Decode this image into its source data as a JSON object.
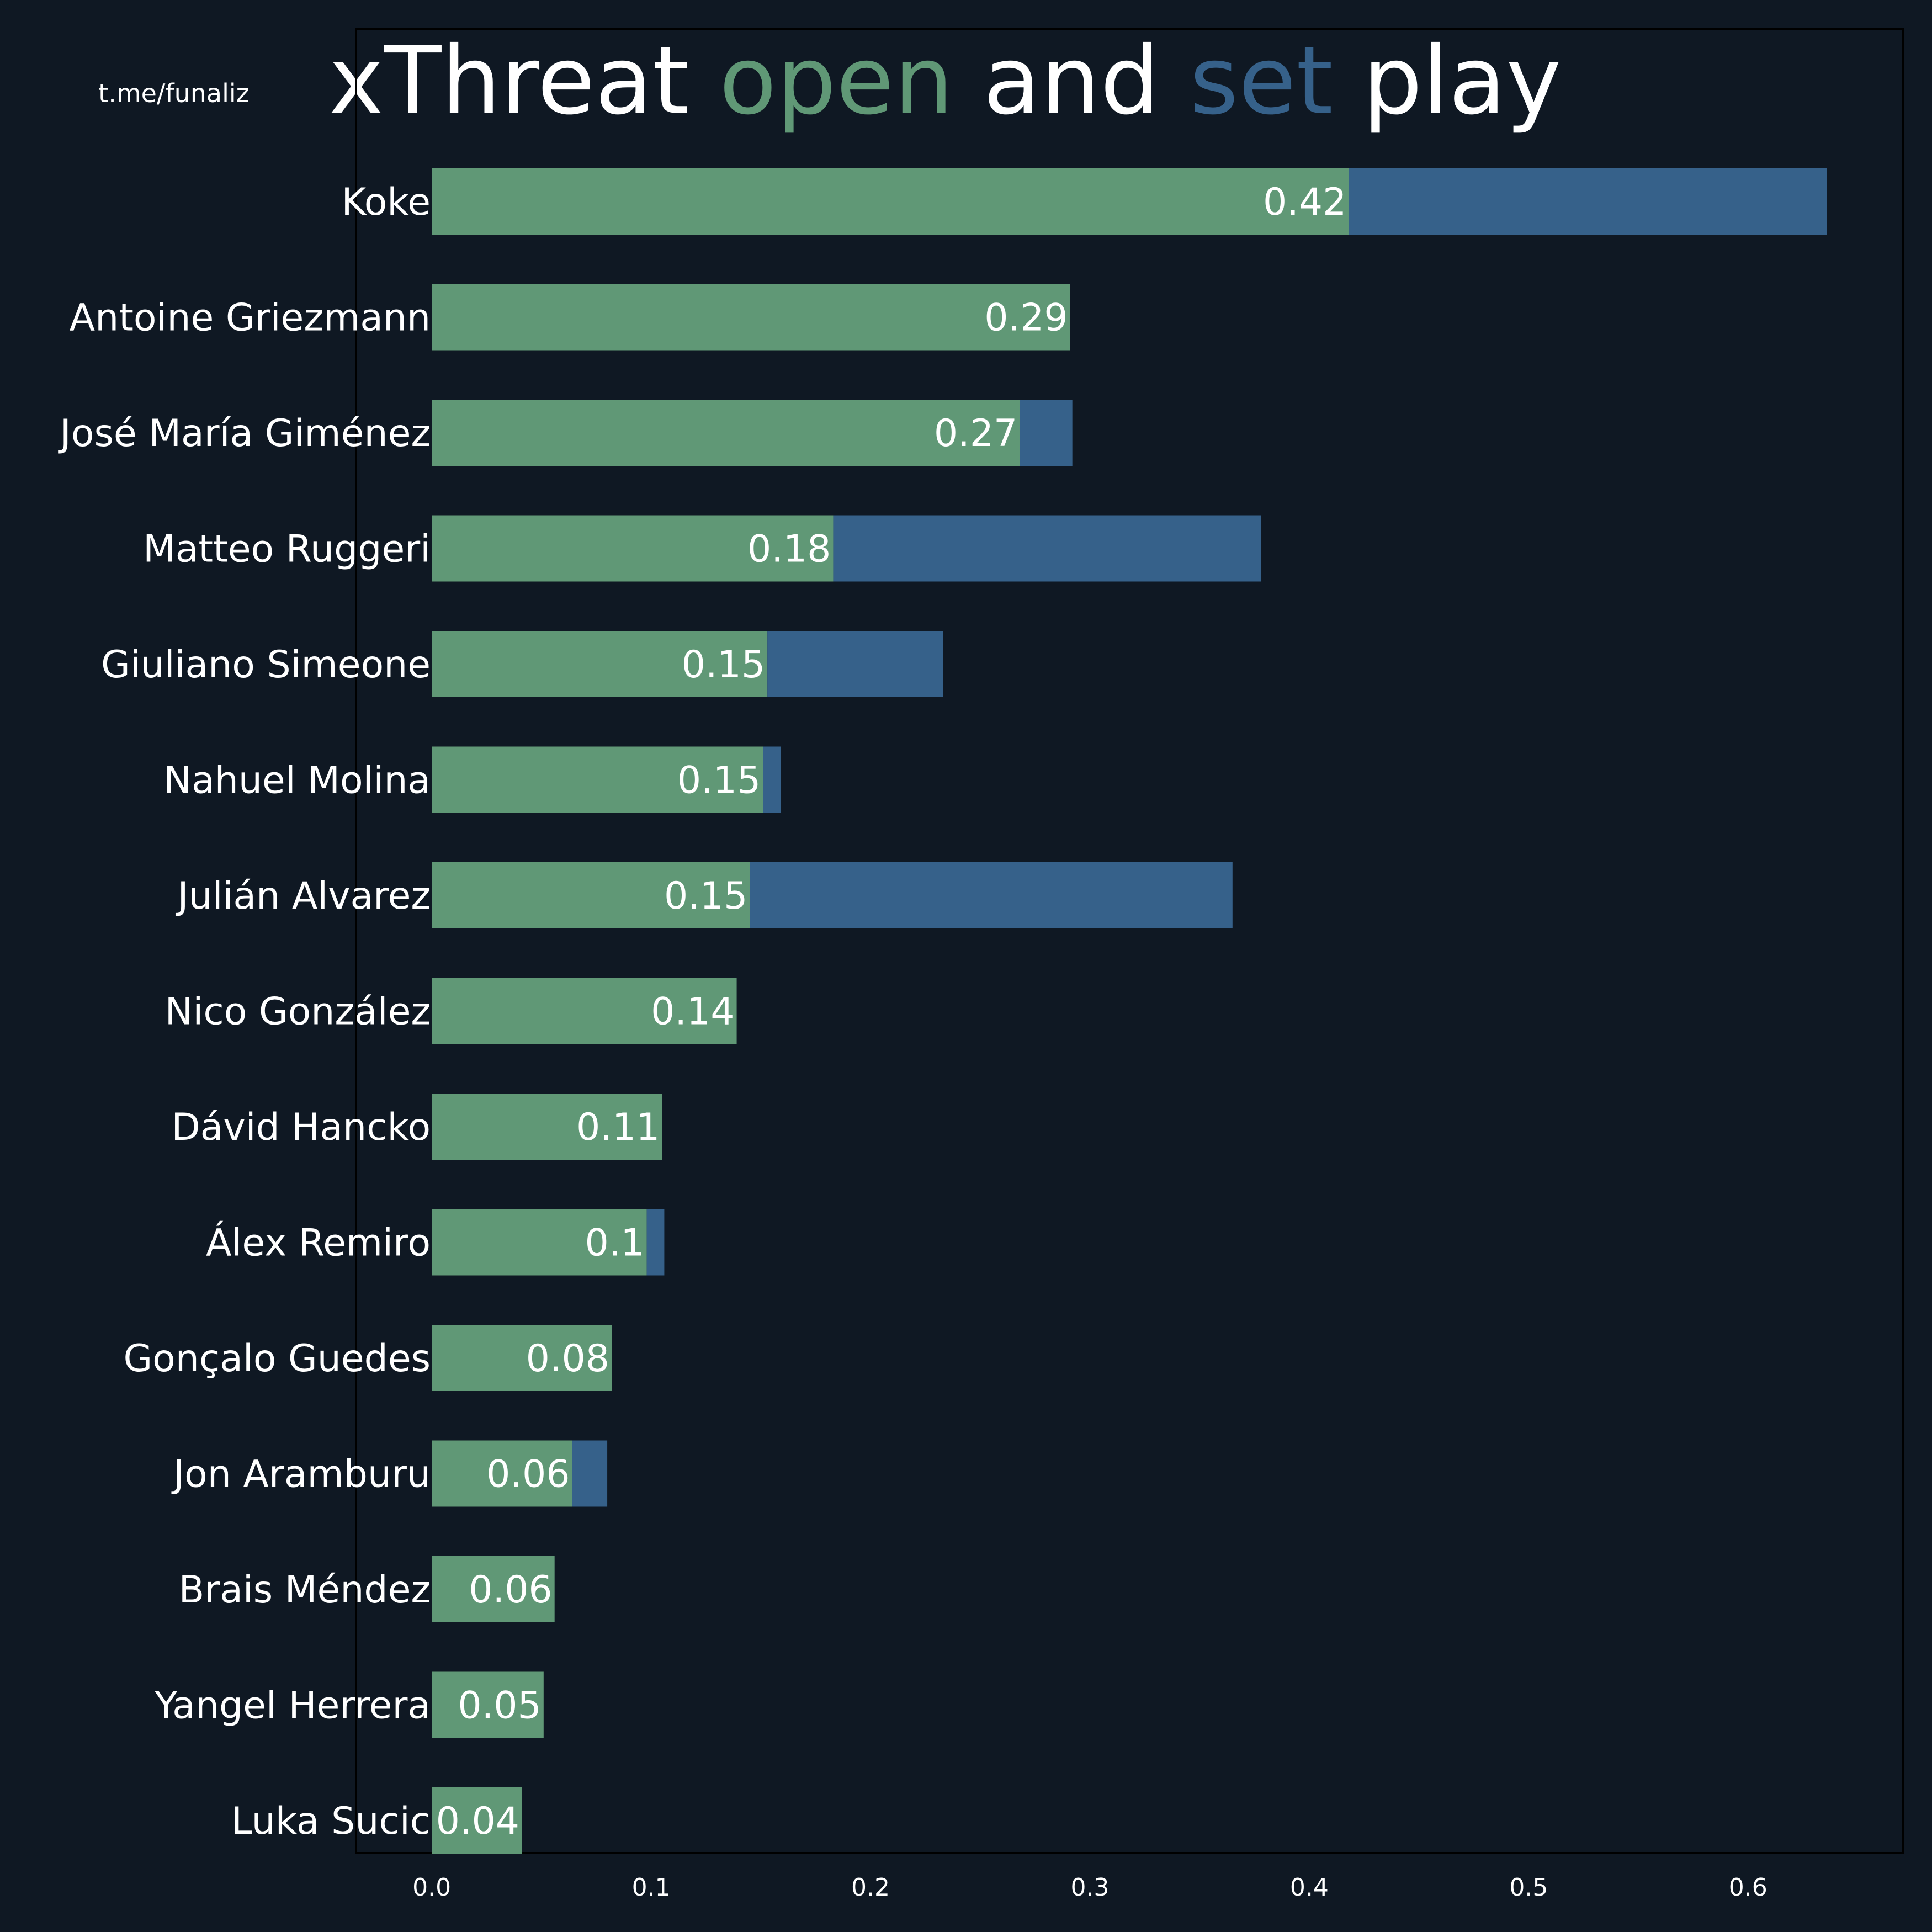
{
  "watermark": "t.me/funaliz",
  "colors": {
    "background": "#0f1823",
    "open": "#609876",
    "set": "#36618a",
    "text": "#ffffff",
    "frame": "#000000"
  },
  "chart_data": {
    "type": "bar",
    "orientation": "horizontal",
    "stacked": true,
    "title_parts": [
      {
        "text": "xThreat ",
        "color": "#ffffff"
      },
      {
        "text": "open",
        "color": "#609876"
      },
      {
        "text": " and ",
        "color": "#ffffff"
      },
      {
        "text": "set",
        "color": "#36618a"
      },
      {
        "text": " play",
        "color": "#ffffff"
      }
    ],
    "categories": [
      "Koke",
      "Antoine Griezmann",
      "José María Giménez",
      "Matteo Ruggeri",
      "Giuliano Simeone",
      "Nahuel Molina",
      "Julián Alvarez",
      "Nico González",
      "Dávid Hancko",
      "Álex Remiro",
      "Gonçalo Guedes",
      "Jon Aramburu",
      "Brais Méndez",
      "Yangel Herrera",
      "Luka Sucic"
    ],
    "series": [
      {
        "key": "open",
        "color": "#609876",
        "values": [
          0.418,
          0.291,
          0.268,
          0.183,
          0.153,
          0.151,
          0.145,
          0.139,
          0.105,
          0.098,
          0.082,
          0.064,
          0.056,
          0.051,
          0.041
        ]
      },
      {
        "key": "set",
        "color": "#36618a",
        "values": [
          0.218,
          0.0,
          0.024,
          0.195,
          0.08,
          0.008,
          0.22,
          0.0,
          0.0,
          0.008,
          0.0,
          0.016,
          0.0,
          0.0,
          0.0
        ]
      }
    ],
    "value_labels": [
      "0.42",
      "0.29",
      "0.27",
      "0.18",
      "0.15",
      "0.15",
      "0.15",
      "0.14",
      "0.11",
      "0.1",
      "0.08",
      "0.06",
      "0.06",
      "0.05",
      "0.04"
    ],
    "xlim": [
      -0.0345,
      0.6705
    ],
    "xticks": [
      0.0,
      0.1,
      0.2,
      0.3,
      0.4,
      0.5,
      0.6
    ],
    "xtick_labels": [
      "0.0",
      "0.1",
      "0.2",
      "0.3",
      "0.4",
      "0.5",
      "0.6"
    ],
    "grid": false,
    "legend": "none"
  }
}
